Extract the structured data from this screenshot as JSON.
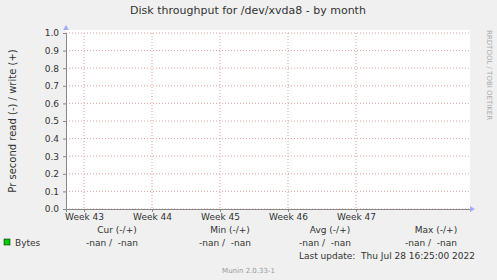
{
  "chart_data": {
    "type": "line",
    "title": "Disk throughput for /dev/xvda8 - by month",
    "y_label": "Pr second read (-) / write (+)",
    "watermark": "RRDTOOL / TOBI OETIKER",
    "x": [
      43,
      44,
      45,
      46,
      47
    ],
    "xlim": [
      42.735,
      48.676
    ],
    "xticks": [
      {
        "value": 43,
        "label": "Week 43"
      },
      {
        "value": 44,
        "label": "Week 44"
      },
      {
        "value": 45,
        "label": "Week 45"
      },
      {
        "value": 46,
        "label": "Week 46"
      },
      {
        "value": 47,
        "label": "Week 47"
      }
    ],
    "ylim": [
      0,
      1
    ],
    "yticks": [
      {
        "value": 0,
        "label": "0.0"
      },
      0.1,
      0.2,
      0.3,
      0.4,
      0.5,
      0.6,
      0.7,
      0.8,
      0.9,
      {
        "value": 1,
        "label": "1.0"
      }
    ],
    "grid": true,
    "stats_headers": [
      "Cur (-/+)",
      "Min (-/+)",
      "Avg (-/+)",
      "Max (-/+)"
    ],
    "series": [
      {
        "name": "Bytes",
        "color": "#00cc00",
        "values": [
          null,
          null,
          null,
          null,
          null
        ],
        "stats": [
          "-nan /  -nan",
          "-nan /  -nan",
          "-nan /  -nan",
          "-nan /  -nan"
        ]
      }
    ],
    "footer": "Last update:  Thu Jul 28 16:25:00 2022",
    "credit": "Munin 2.0.33-1"
  }
}
